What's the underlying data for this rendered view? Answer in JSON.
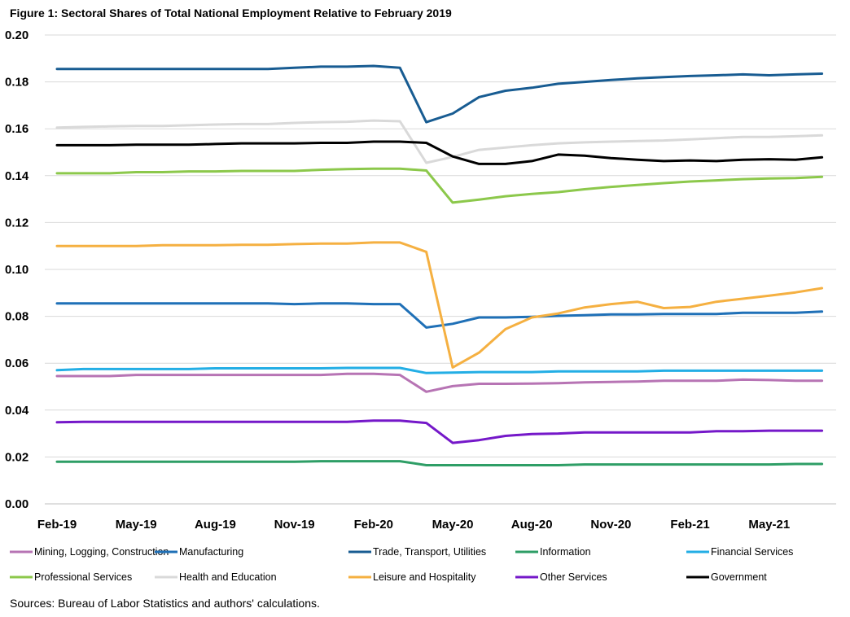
{
  "chart_data": {
    "type": "line",
    "title": "Figure 1: Sectoral Shares of Total National Employment Relative to February 2019",
    "source": "Sources: Bureau of Labor Statistics and authors' calculations.",
    "xlabel": "",
    "ylabel": "",
    "ylim": [
      0,
      0.2
    ],
    "yticks": [
      "0.00",
      "0.02",
      "0.04",
      "0.06",
      "0.08",
      "0.10",
      "0.12",
      "0.14",
      "0.16",
      "0.18",
      "0.20"
    ],
    "x": [
      "2019-02",
      "2019-03",
      "2019-04",
      "2019-05",
      "2019-06",
      "2019-07",
      "2019-08",
      "2019-09",
      "2019-10",
      "2019-11",
      "2019-12",
      "2020-01",
      "2020-02",
      "2020-03",
      "2020-04",
      "2020-05",
      "2020-06",
      "2020-07",
      "2020-08",
      "2020-09",
      "2020-10",
      "2020-11",
      "2020-12",
      "2021-01",
      "2021-02",
      "2021-03",
      "2021-04",
      "2021-05",
      "2021-06",
      "2021-07"
    ],
    "xtick_labels": [
      "Feb-19",
      "May-19",
      "Aug-19",
      "Nov-19",
      "Feb-20",
      "May-20",
      "Aug-20",
      "Nov-20",
      "Feb-21",
      "May-21"
    ],
    "xtick_every": 3,
    "grid": "horizontal",
    "legend_position": "bottom",
    "series": [
      {
        "name": "Mining, Logging, Construction",
        "color": "#b774b4",
        "values": [
          0.0545,
          0.0545,
          0.0545,
          0.055,
          0.055,
          0.055,
          0.055,
          0.055,
          0.055,
          0.055,
          0.055,
          0.0555,
          0.0555,
          0.055,
          0.0478,
          0.0502,
          0.0512,
          0.0512,
          0.0513,
          0.0515,
          0.0518,
          0.052,
          0.0522,
          0.0525,
          0.0525,
          0.0525,
          0.053,
          0.0528,
          0.0525,
          0.0525
        ]
      },
      {
        "name": "Manufacturing",
        "color": "#1f70b7",
        "values": [
          0.0855,
          0.0855,
          0.0855,
          0.0855,
          0.0855,
          0.0855,
          0.0855,
          0.0855,
          0.0855,
          0.0852,
          0.0855,
          0.0855,
          0.0852,
          0.0852,
          0.0752,
          0.0768,
          0.0795,
          0.0795,
          0.0798,
          0.0802,
          0.0805,
          0.0808,
          0.0808,
          0.081,
          0.081,
          0.081,
          0.0815,
          0.0815,
          0.0815,
          0.082
        ]
      },
      {
        "name": "Trade, Transport, Utilities",
        "color": "#185c92",
        "values": [
          0.1855,
          0.1855,
          0.1855,
          0.1855,
          0.1855,
          0.1855,
          0.1855,
          0.1855,
          0.1855,
          0.186,
          0.1865,
          0.1865,
          0.1868,
          0.186,
          0.1628,
          0.1665,
          0.1735,
          0.1762,
          0.1775,
          0.1792,
          0.18,
          0.1808,
          0.1815,
          0.182,
          0.1825,
          0.1828,
          0.1832,
          0.1828,
          0.1832,
          0.1835
        ]
      },
      {
        "name": "Information",
        "color": "#2e9e66",
        "values": [
          0.018,
          0.018,
          0.018,
          0.018,
          0.018,
          0.018,
          0.018,
          0.018,
          0.018,
          0.018,
          0.0182,
          0.0182,
          0.0182,
          0.0182,
          0.0165,
          0.0165,
          0.0165,
          0.0165,
          0.0165,
          0.0165,
          0.0168,
          0.0168,
          0.0168,
          0.0168,
          0.0168,
          0.0168,
          0.0168,
          0.0168,
          0.017,
          0.017
        ]
      },
      {
        "name": "Financial Services",
        "color": "#23aee5",
        "values": [
          0.057,
          0.0575,
          0.0575,
          0.0575,
          0.0575,
          0.0575,
          0.0578,
          0.0578,
          0.0578,
          0.0578,
          0.0578,
          0.058,
          0.058,
          0.058,
          0.0558,
          0.056,
          0.0562,
          0.0562,
          0.0562,
          0.0565,
          0.0565,
          0.0565,
          0.0565,
          0.0568,
          0.0568,
          0.0568,
          0.0568,
          0.0568,
          0.0568,
          0.0568
        ]
      },
      {
        "name": "Professional Services",
        "color": "#8cc84b",
        "values": [
          0.141,
          0.141,
          0.141,
          0.1415,
          0.1415,
          0.1418,
          0.1418,
          0.142,
          0.142,
          0.142,
          0.1425,
          0.1428,
          0.143,
          0.143,
          0.1422,
          0.1285,
          0.1298,
          0.1312,
          0.1322,
          0.133,
          0.1342,
          0.1352,
          0.136,
          0.1368,
          0.1375,
          0.138,
          0.1385,
          0.1388,
          0.139,
          0.1395
        ]
      },
      {
        "name": "Health and Education",
        "color": "#d9d9d9",
        "values": [
          0.1605,
          0.1608,
          0.161,
          0.1612,
          0.1612,
          0.1615,
          0.1618,
          0.162,
          0.162,
          0.1625,
          0.1628,
          0.163,
          0.1635,
          0.1632,
          0.1455,
          0.148,
          0.151,
          0.152,
          0.153,
          0.1538,
          0.1542,
          0.1545,
          0.1548,
          0.155,
          0.1555,
          0.156,
          0.1565,
          0.1565,
          0.1568,
          0.1572
        ]
      },
      {
        "name": "Leisure and Hospitality",
        "color": "#f5b041",
        "values": [
          0.11,
          0.11,
          0.11,
          0.11,
          0.1103,
          0.1103,
          0.1103,
          0.1105,
          0.1105,
          0.1108,
          0.111,
          0.111,
          0.1115,
          0.1115,
          0.1075,
          0.0582,
          0.0645,
          0.0745,
          0.0795,
          0.0812,
          0.0838,
          0.0852,
          0.0862,
          0.0835,
          0.084,
          0.0862,
          0.0875,
          0.0888,
          0.0902,
          0.092
        ]
      },
      {
        "name": "Other Services",
        "color": "#7518c9",
        "values": [
          0.0348,
          0.035,
          0.035,
          0.035,
          0.035,
          0.035,
          0.035,
          0.035,
          0.035,
          0.035,
          0.035,
          0.035,
          0.0355,
          0.0355,
          0.0345,
          0.026,
          0.0272,
          0.029,
          0.0298,
          0.03,
          0.0305,
          0.0305,
          0.0305,
          0.0305,
          0.0305,
          0.031,
          0.031,
          0.0312,
          0.0312,
          0.0312
        ]
      },
      {
        "name": "Government",
        "color": "#000000",
        "values": [
          0.153,
          0.153,
          0.153,
          0.1532,
          0.1532,
          0.1532,
          0.1535,
          0.1538,
          0.1538,
          0.1538,
          0.154,
          0.154,
          0.1545,
          0.1545,
          0.154,
          0.1482,
          0.145,
          0.145,
          0.1462,
          0.149,
          0.1485,
          0.1475,
          0.1468,
          0.1462,
          0.1465,
          0.1462,
          0.1468,
          0.147,
          0.1468,
          0.1478
        ]
      }
    ]
  }
}
